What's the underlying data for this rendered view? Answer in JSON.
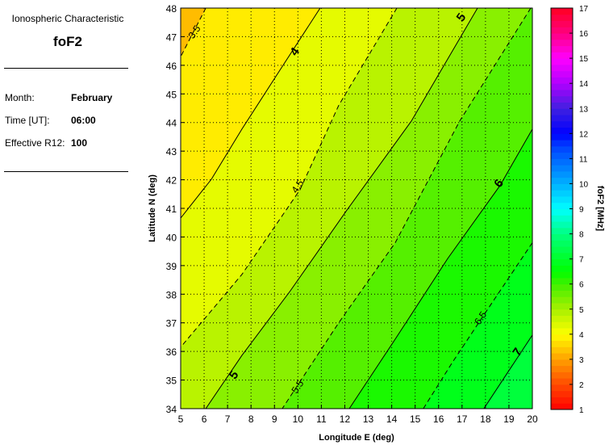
{
  "panel": {
    "heading": "Ionospheric Characteristic",
    "characteristic": "foF2",
    "rows": [
      {
        "label": "Month:",
        "value": "February"
      },
      {
        "label": "Time [UT]:",
        "value": "06:00"
      },
      {
        "label": "Effective R12:",
        "value": "100"
      }
    ]
  },
  "chart_data": {
    "type": "heatmap",
    "xlabel": "Longitude E (deg)",
    "ylabel": "Latitude N (deg)",
    "xlim": [
      5,
      20
    ],
    "ylim": [
      34,
      48
    ],
    "xticks": [
      "5",
      "6",
      "7",
      "8",
      "9",
      "10",
      "11",
      "12",
      "13",
      "14",
      "15",
      "16",
      "17",
      "18",
      "19",
      "20"
    ],
    "yticks": [
      "34",
      "35",
      "36",
      "37",
      "38",
      "39",
      "40",
      "41",
      "42",
      "43",
      "44",
      "45",
      "46",
      "47",
      "48"
    ],
    "grid": true,
    "colorbar": {
      "label": "foF2 [MHz]",
      "range": [
        1,
        17
      ],
      "ticks": [
        "1",
        "2",
        "3",
        "4",
        "5",
        "6",
        "7",
        "8",
        "9",
        "10",
        "11",
        "12",
        "13",
        "14",
        "15",
        "16",
        "17"
      ],
      "colormap": [
        [
          1,
          "#ff0000"
        ],
        [
          2,
          "#ff4a00"
        ],
        [
          3,
          "#ffa000"
        ],
        [
          4,
          "#ffff00"
        ],
        [
          5,
          "#a8f000"
        ],
        [
          6,
          "#40f000"
        ],
        [
          6.5,
          "#00ff00"
        ],
        [
          8,
          "#00ff80"
        ],
        [
          9,
          "#00ffff"
        ],
        [
          10,
          "#00b0ff"
        ],
        [
          11.5,
          "#0040ff"
        ],
        [
          12,
          "#0000ff"
        ],
        [
          13,
          "#4020e0"
        ],
        [
          14,
          "#b000ff"
        ],
        [
          15,
          "#ff00ff"
        ],
        [
          16,
          "#ff0080"
        ],
        [
          17,
          "#ff0020"
        ]
      ]
    },
    "contours": [
      {
        "level": 3.5,
        "label": "3.5",
        "style": "dashed",
        "points": [
          [
            6.07,
            48
          ],
          [
            5,
            46.3
          ]
        ],
        "label_at": [
          5.7,
          47.1
        ]
      },
      {
        "level": 4,
        "label": "4",
        "style": "solid",
        "points": [
          [
            10.95,
            48
          ],
          [
            9.16,
            45.74
          ],
          [
            7.61,
            43.77
          ],
          [
            6.31,
            42.02
          ],
          [
            5,
            40.66
          ]
        ],
        "label_at": [
          10.0,
          46.4
        ]
      },
      {
        "level": 4.5,
        "label": "4.5",
        "style": "dashed",
        "points": [
          [
            14.22,
            48
          ],
          [
            11.74,
            44.6
          ],
          [
            10.09,
            41.65
          ],
          [
            7.61,
            38.69
          ],
          [
            5,
            36.15
          ]
        ],
        "label_at": [
          10.1,
          41.7
        ]
      },
      {
        "level": 5,
        "label": "5",
        "style": "solid",
        "points": [
          [
            17.66,
            48
          ],
          [
            14.84,
            44.05
          ],
          [
            12.09,
            40.94
          ],
          [
            9.68,
            38.12
          ],
          [
            7.61,
            35.86
          ],
          [
            6.07,
            34
          ]
        ],
        "label_at": [
          17.1,
          47.6
        ],
        "label2_at": [
          7.4,
          35.1
        ]
      },
      {
        "level": 5.5,
        "label": "5.5",
        "style": "dashed",
        "points": [
          [
            19.93,
            48
          ],
          [
            16.9,
            44.05
          ],
          [
            14.15,
            39.8
          ],
          [
            11.74,
            37
          ],
          [
            9.33,
            34
          ]
        ],
        "label_at": [
          10.1,
          34.7
        ]
      },
      {
        "level": 6,
        "label": "6",
        "style": "solid",
        "points": [
          [
            20,
            43.77
          ],
          [
            18.62,
            41.8
          ],
          [
            16.39,
            39.25
          ],
          [
            14.15,
            36.43
          ],
          [
            12.19,
            34
          ]
        ],
        "label_at": [
          18.7,
          41.8
        ]
      },
      {
        "level": 6.5,
        "label": "6.5",
        "style": "dashed",
        "points": [
          [
            20,
            39.8
          ],
          [
            17.93,
            37.27
          ],
          [
            16.56,
            35.58
          ],
          [
            15.35,
            34
          ]
        ],
        "label_at": [
          17.9,
          37.1
        ]
      },
      {
        "level": 7,
        "label": "7",
        "style": "solid",
        "points": [
          [
            20,
            36.57
          ],
          [
            17.93,
            34
          ]
        ],
        "label_at": [
          19.5,
          35.9
        ]
      }
    ]
  }
}
